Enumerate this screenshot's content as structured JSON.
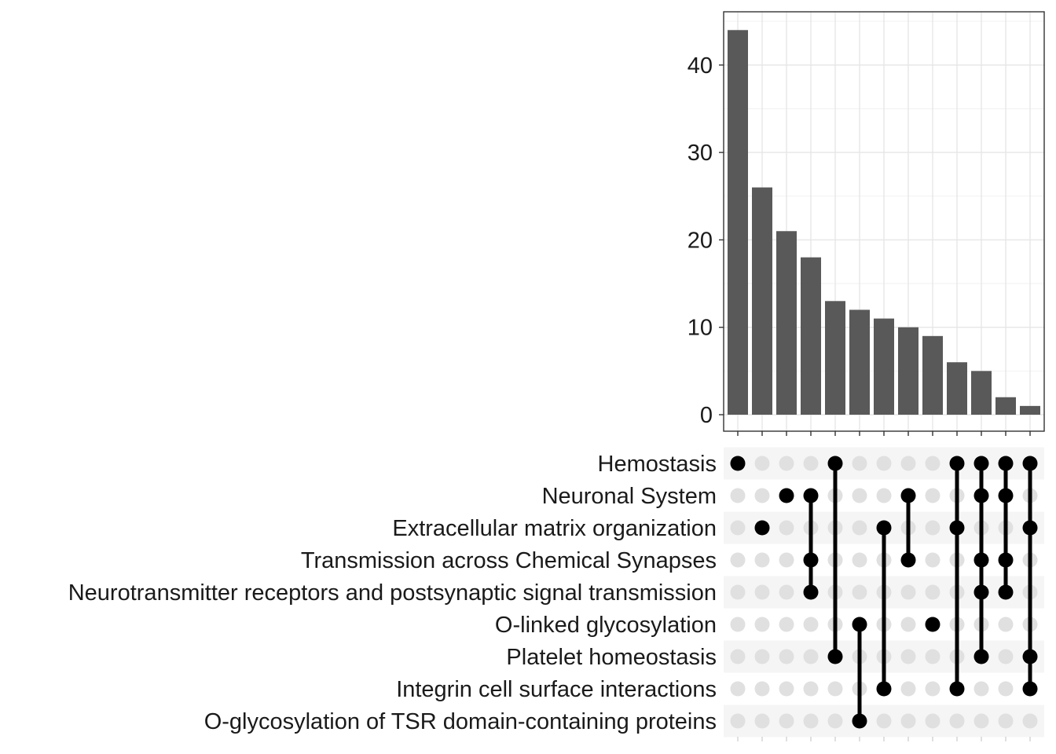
{
  "chart_data": {
    "type": "upset",
    "bar_chart": {
      "type": "bar",
      "values": [
        44,
        26,
        21,
        18,
        13,
        12,
        11,
        10,
        9,
        6,
        5,
        2,
        1
      ],
      "ylim": [
        0,
        46
      ],
      "yticks": [
        0,
        10,
        20,
        30,
        40
      ],
      "xlabel": "",
      "ylabel": "",
      "bar_color": "#595959",
      "grid": true
    },
    "sets": [
      "Hemostasis",
      "Neuronal System",
      "Extracellular matrix organization",
      "Transmission across Chemical Synapses",
      "Neurotransmitter receptors and postsynaptic signal transmission",
      "O-linked glycosylation",
      "Platelet homeostasis",
      "Integrin cell surface interactions",
      "O-glycosylation of TSR domain-containing proteins"
    ],
    "intersections": [
      [
        "Hemostasis"
      ],
      [
        "Extracellular matrix organization"
      ],
      [
        "Neuronal System"
      ],
      [
        "Neuronal System",
        "Transmission across Chemical Synapses",
        "Neurotransmitter receptors and postsynaptic signal transmission"
      ],
      [
        "Hemostasis",
        "Platelet homeostasis"
      ],
      [
        "O-linked glycosylation",
        "O-glycosylation of TSR domain-containing proteins"
      ],
      [
        "Extracellular matrix organization",
        "Integrin cell surface interactions"
      ],
      [
        "Neuronal System",
        "Transmission across Chemical Synapses"
      ],
      [
        "O-linked glycosylation"
      ],
      [
        "Hemostasis",
        "Extracellular matrix organization",
        "Integrin cell surface interactions"
      ],
      [
        "Hemostasis",
        "Neuronal System",
        "Transmission across Chemical Synapses",
        "Neurotransmitter receptors and postsynaptic signal transmission",
        "Platelet homeostasis"
      ],
      [
        "Hemostasis",
        "Neuronal System",
        "Transmission across Chemical Synapses",
        "Neurotransmitter receptors and postsynaptic signal transmission"
      ],
      [
        "Hemostasis",
        "Extracellular matrix organization",
        "Platelet homeostasis",
        "Integrin cell surface interactions"
      ]
    ],
    "colors": {
      "dot_active": "#000000",
      "dot_inactive": "#e0e0e0",
      "stripe": "#f5f5f5"
    }
  }
}
